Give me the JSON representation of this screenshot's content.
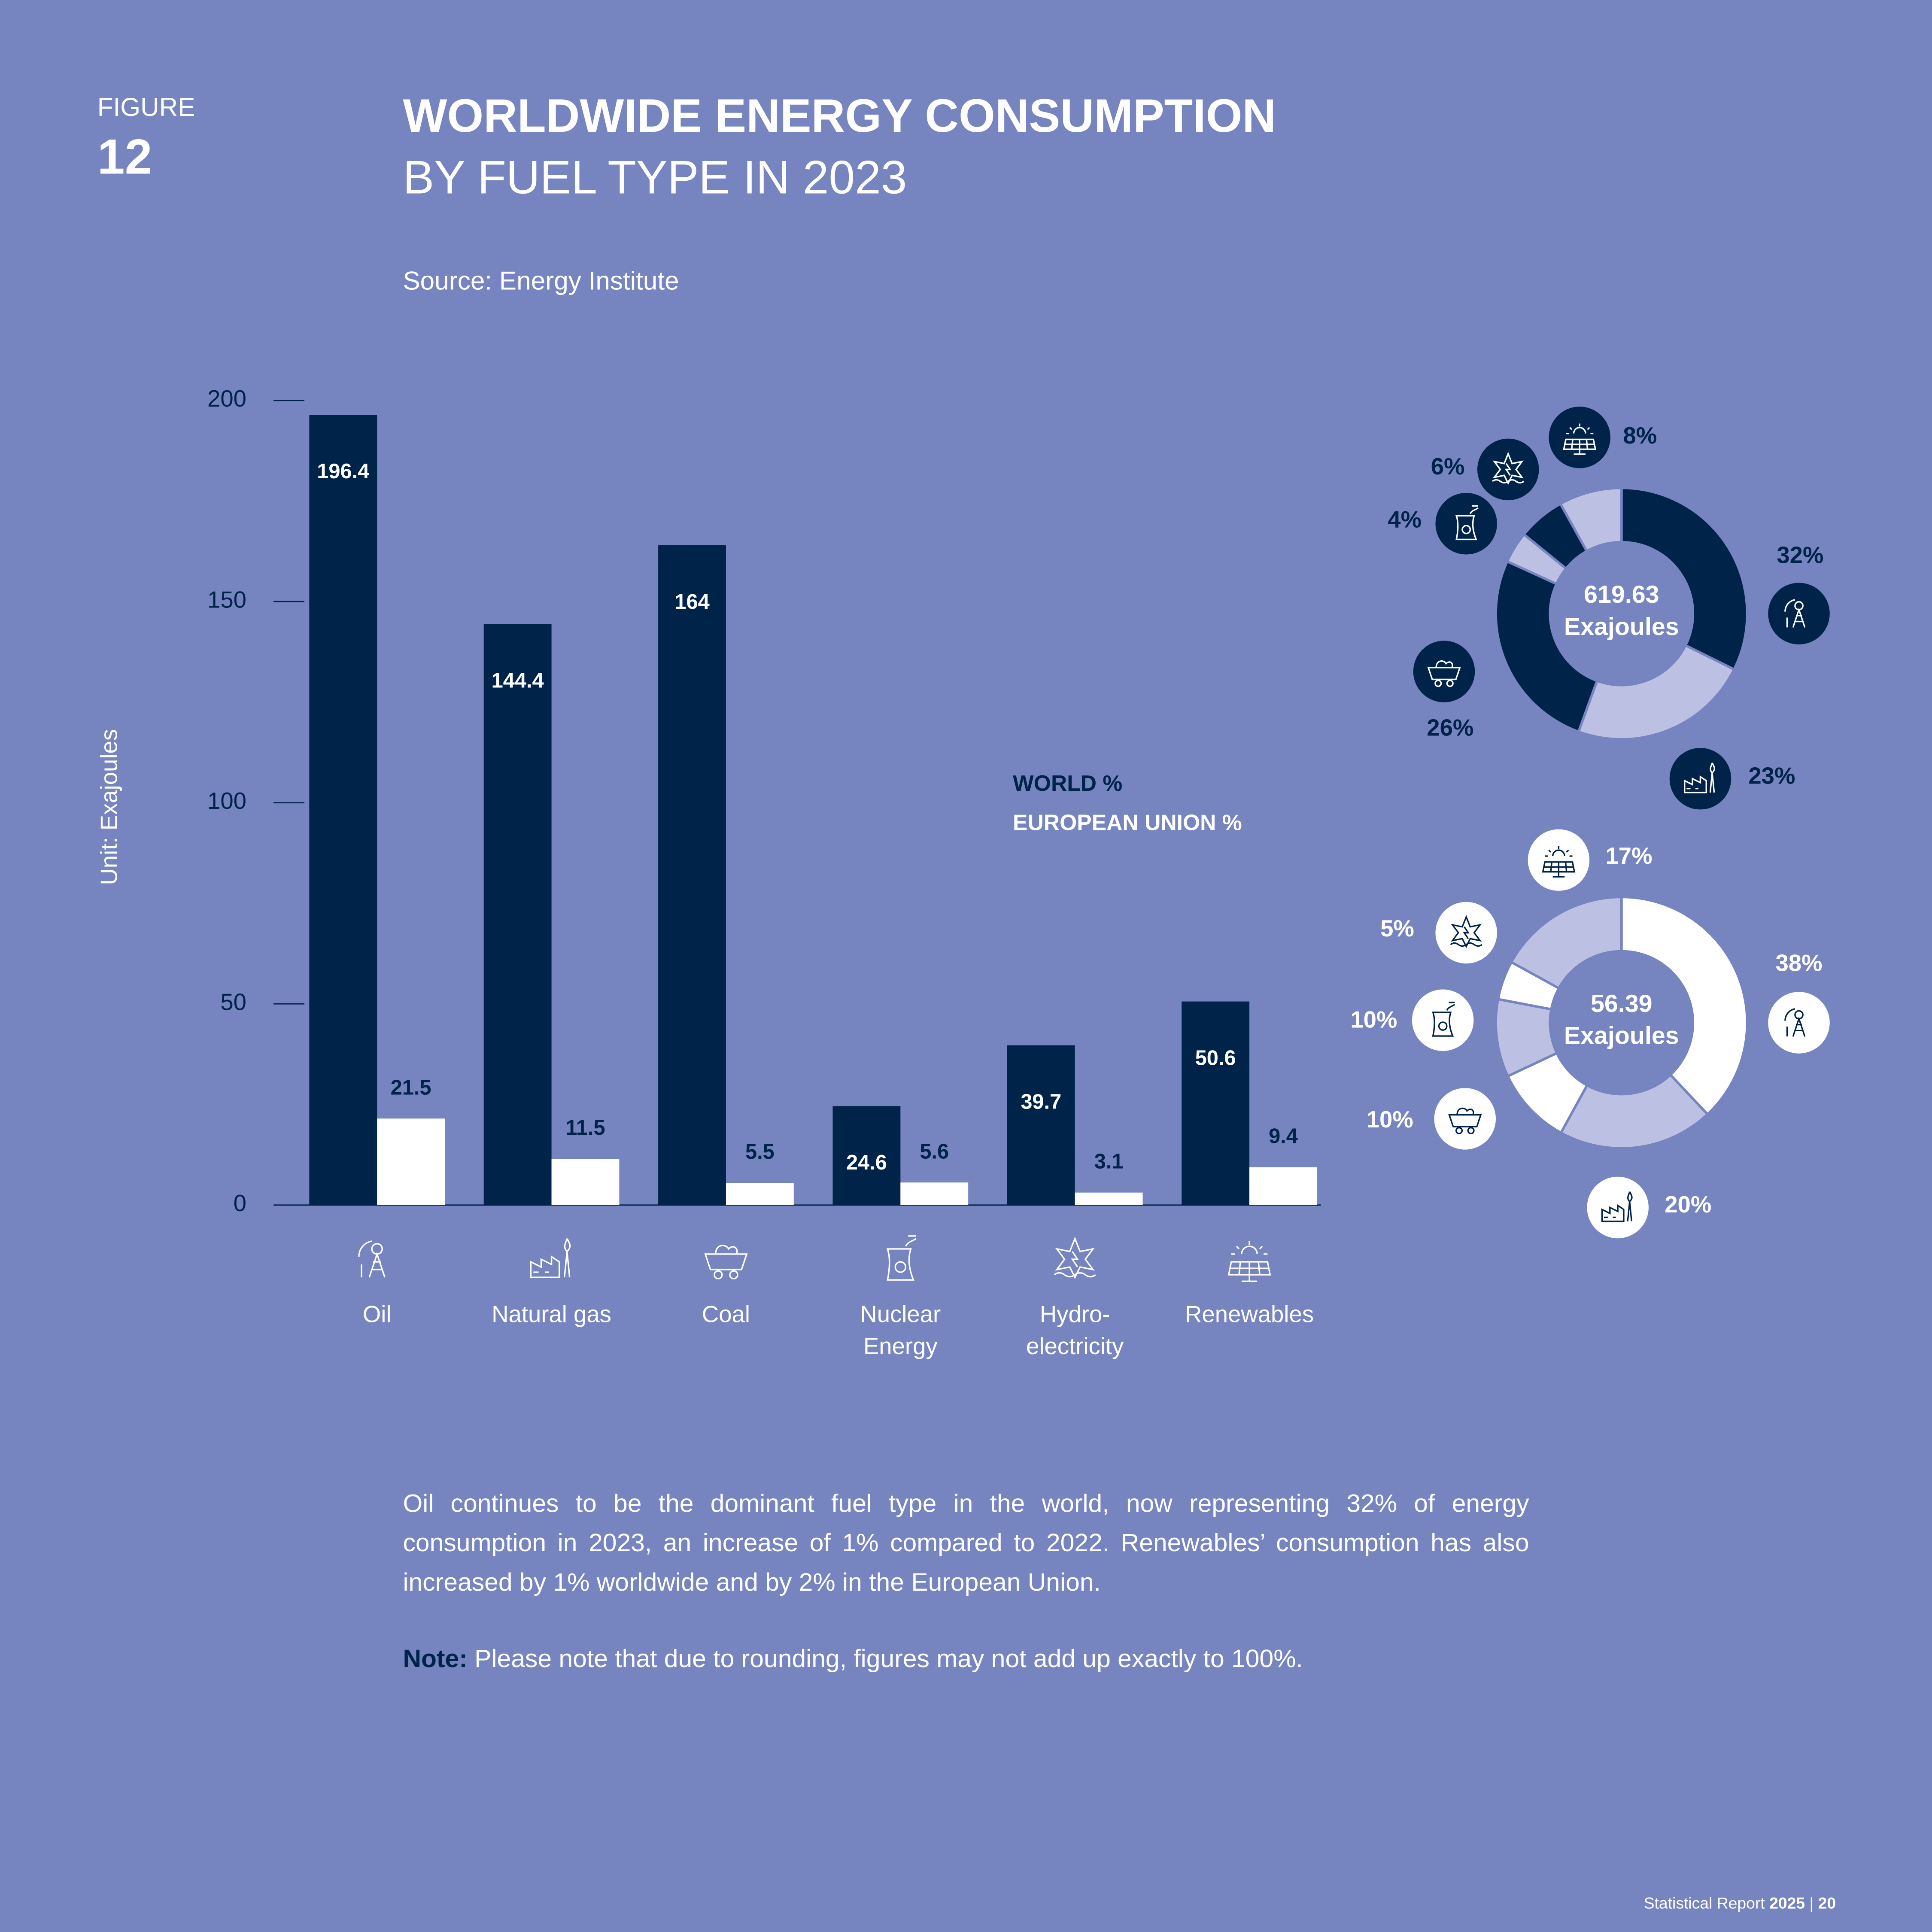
{
  "figure_label": "FIGURE",
  "figure_number": "12",
  "title": "WORLDWIDE ENERGY CONSUMPTION",
  "subtitle": "BY FUEL TYPE IN 2023",
  "source": "Source: Energy Institute",
  "chart_data": [
    {
      "type": "bar",
      "y_label": "Unit: Exajoules",
      "categories": [
        "Oil",
        "Natural gas",
        "Coal",
        "Nuclear Energy",
        "Hydro-electricity",
        "Renewables"
      ],
      "series": [
        {
          "color": "#00234a",
          "values": [
            196.4,
            144.4,
            164,
            24.6,
            39.7,
            50.6
          ]
        },
        {
          "color": "#ffffff",
          "values": [
            21.5,
            11.5,
            5.5,
            5.6,
            3.1,
            9.4
          ]
        }
      ],
      "ylim": [
        0,
        200
      ],
      "yticks": [
        0,
        50,
        100,
        150,
        200
      ]
    },
    {
      "type": "pie",
      "legend_label": "WORLD %",
      "legend_color": "#00234a",
      "total": 619.63,
      "total_unit": "Exajoules",
      "values": [
        32,
        23,
        26,
        4,
        6,
        8
      ],
      "value_labels": [
        "32%",
        "23%",
        "26%",
        "4%",
        "6%",
        "8%"
      ],
      "colors": [
        "#00234a",
        "#bcc1e3",
        "#00234a",
        "#bcc1e3",
        "#00234a",
        "#bcc1e3"
      ]
    },
    {
      "type": "pie",
      "legend_label": "EUROPEAN UNION %",
      "legend_color": "#ffffff",
      "total": 56.39,
      "total_unit": "Exajoules",
      "values": [
        38,
        20,
        10,
        10,
        5,
        17
      ],
      "value_labels": [
        "38%",
        "20%",
        "10%",
        "10%",
        "5%",
        "17%"
      ],
      "colors": [
        "#ffffff",
        "#bcc1e3",
        "#ffffff",
        "#bcc1e3",
        "#ffffff",
        "#bcc1e3"
      ]
    }
  ],
  "paragraph": "Oil continues to be the dominant fuel type in the world, now representing 32% of energy consumption in 2023, an increase of 1% compared to 2022. Renewables’ consumption has also increased by 1% worldwide and by 2% in the European Union.",
  "note": {
    "label": "Note:",
    "text": "Please note that due to rounding, figures may not add up exactly to 100%."
  },
  "footer": {
    "text": "Statistical Report",
    "year": "2025",
    "separator": "|",
    "page": "20"
  }
}
